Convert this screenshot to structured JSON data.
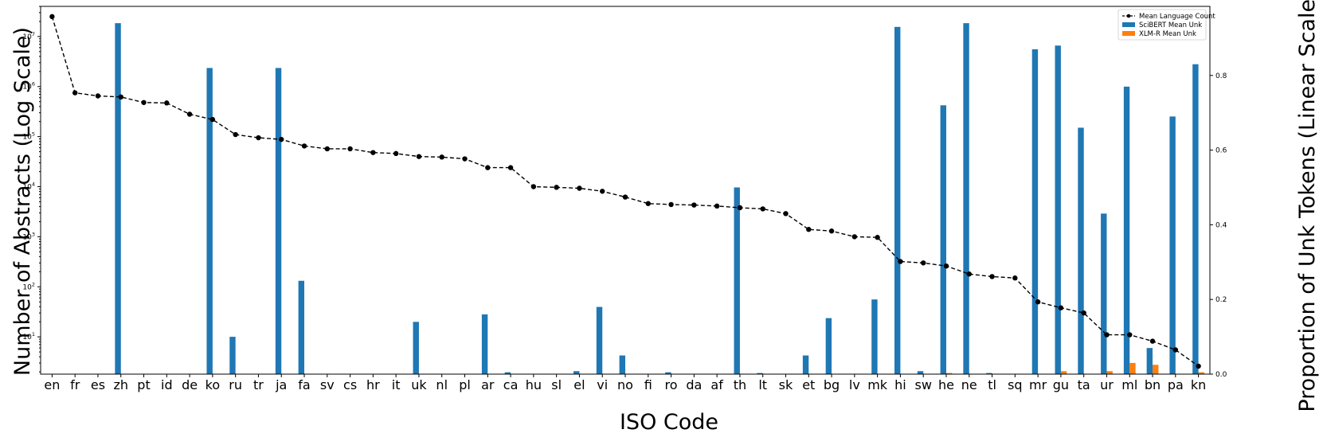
{
  "chart_data": {
    "type": "bar",
    "xlabel": "ISO Code",
    "ylabel_left": "Number of Abstracts (Log Scale)",
    "ylabel_right": "Proportion of Unk Tokens (Linear Scale)",
    "left_axis": {
      "scale": "log",
      "range": [
        1.8,
        40000000
      ],
      "ticks": [
        {
          "value": 10,
          "base": "10",
          "exp": "1"
        },
        {
          "value": 100,
          "base": "10",
          "exp": "2"
        },
        {
          "value": 1000,
          "base": "10",
          "exp": "3"
        },
        {
          "value": 10000,
          "base": "10",
          "exp": "4"
        },
        {
          "value": 100000,
          "base": "10",
          "exp": "5"
        },
        {
          "value": 1000000,
          "base": "10",
          "exp": "6"
        },
        {
          "value": 10000000,
          "base": "10",
          "exp": "7"
        }
      ]
    },
    "right_axis": {
      "scale": "linear",
      "range": [
        0.0,
        0.985
      ],
      "ticks": [
        "0.0",
        "0.2",
        "0.4",
        "0.6",
        "0.8"
      ]
    },
    "categories": [
      "en",
      "fr",
      "es",
      "zh",
      "pt",
      "id",
      "de",
      "ko",
      "ru",
      "tr",
      "ja",
      "fa",
      "sv",
      "cs",
      "hr",
      "it",
      "uk",
      "nl",
      "pl",
      "ar",
      "ca",
      "hu",
      "sl",
      "el",
      "vi",
      "no",
      "fi",
      "ro",
      "da",
      "af",
      "th",
      "lt",
      "sk",
      "et",
      "bg",
      "lv",
      "mk",
      "hi",
      "sw",
      "he",
      "ne",
      "tl",
      "sq",
      "mr",
      "gu",
      "ta",
      "ur",
      "ml",
      "bn",
      "pa",
      "kn"
    ],
    "series": [
      {
        "name": "Mean Language Count",
        "kind": "line",
        "axis": "left",
        "color": "#000000",
        "values": [
          25000000,
          750000,
          650000,
          620000,
          480000,
          470000,
          280000,
          220000,
          110000,
          95000,
          88000,
          65000,
          57000,
          57000,
          48000,
          46000,
          40000,
          39000,
          36000,
          24000,
          24000,
          10000,
          9700,
          9300,
          8100,
          6200,
          4600,
          4400,
          4300,
          4100,
          3800,
          3600,
          2900,
          1400,
          1300,
          1000,
          970,
          320,
          300,
          260,
          180,
          160,
          150,
          50,
          38,
          30,
          11,
          11,
          8.2,
          5.5,
          2.6
        ]
      },
      {
        "name": "SciBERT Mean Unk",
        "kind": "bar",
        "axis": "right",
        "color": "#1f77b4",
        "values": [
          0,
          0,
          0,
          0.94,
          0,
          0,
          0,
          0.82,
          0.1,
          0,
          0.82,
          0.25,
          0,
          0,
          0,
          0,
          0.14,
          0,
          0,
          0.16,
          0.005,
          0,
          0,
          0.008,
          0.18,
          0.05,
          0,
          0.005,
          0,
          0,
          0.5,
          0.003,
          0,
          0.05,
          0.15,
          0,
          0.2,
          0.93,
          0.008,
          0.72,
          0.94,
          0.003,
          0,
          0.87,
          0.88,
          0.66,
          0.43,
          0.77,
          0.07,
          0.69,
          0.83
        ]
      },
      {
        "name": "XLM-R Mean Unk",
        "kind": "bar",
        "axis": "right",
        "color": "#ff7f0e",
        "values": [
          0,
          0,
          0,
          0,
          0,
          0,
          0,
          0,
          0,
          0,
          0,
          0,
          0,
          0,
          0,
          0,
          0,
          0,
          0,
          0,
          0,
          0,
          0,
          0,
          0,
          0,
          0,
          0,
          0,
          0,
          0,
          0,
          0,
          0,
          0,
          0,
          0,
          0,
          0,
          0.003,
          0,
          0,
          0,
          0,
          0.008,
          0,
          0.008,
          0.03,
          0.025,
          0,
          0.005
        ]
      }
    ],
    "legend": {
      "placement": "top-right"
    },
    "grid": false
  }
}
